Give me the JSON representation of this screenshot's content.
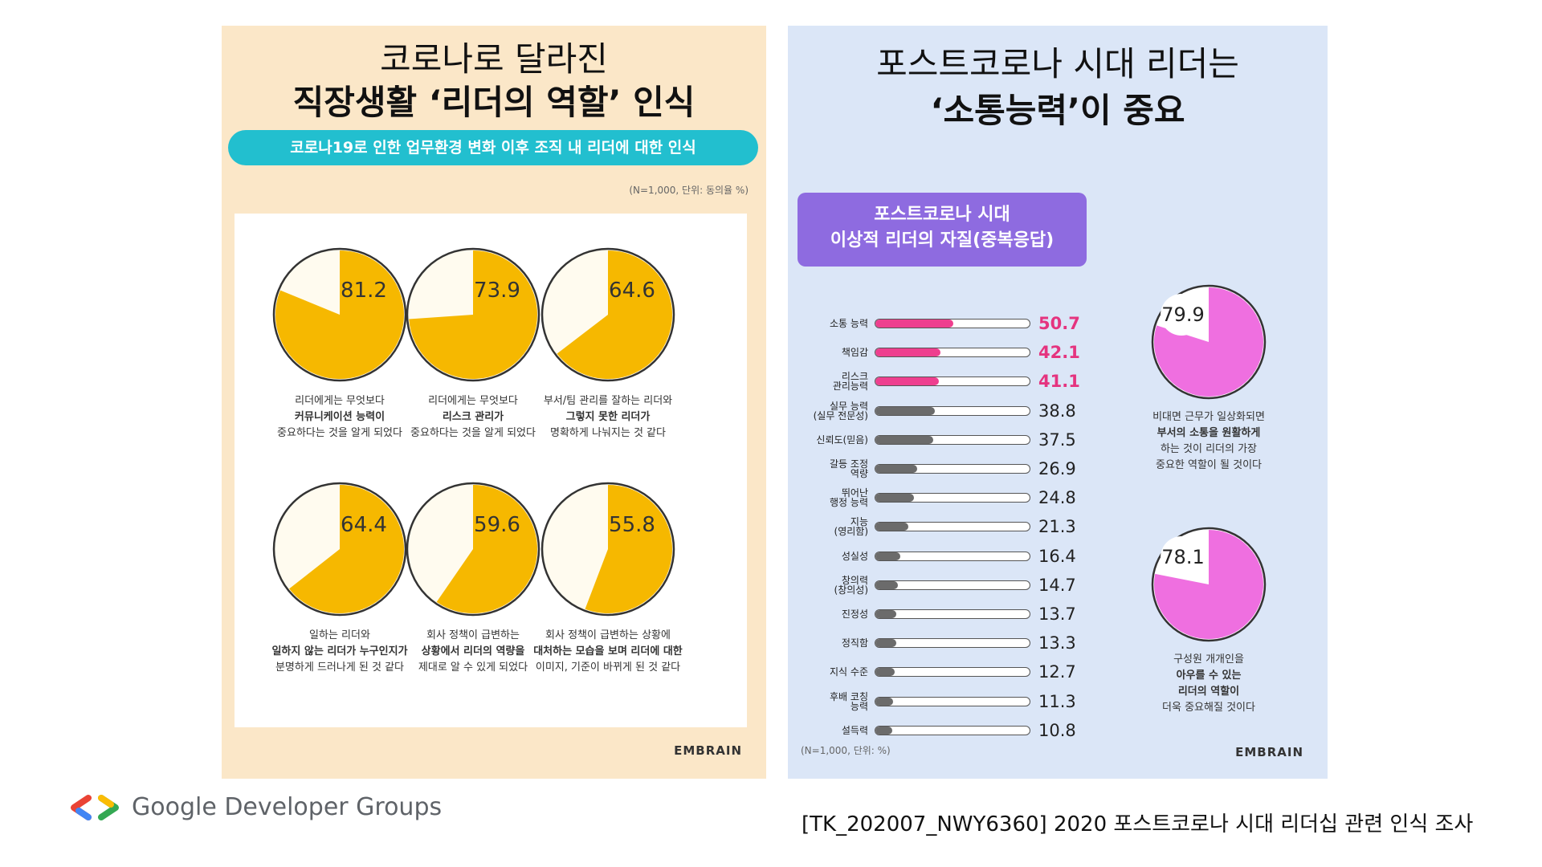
{
  "left": {
    "title_line1": "코로나로 달라진",
    "title_line2": "직장생활 ‘리더의 역할’ 인식",
    "pill": "코로나19로 인한 업무환경 변화 이후 조직 내 리더에 대한 인식",
    "note": "(N=1,000, 단위: 동의율 %)",
    "logo": "EMBRAIN",
    "items": [
      {
        "value": "81.2",
        "cap1": "리더에게는 무엇보다",
        "cap2": "커뮤니케이션 능력이",
        "cap3": "중요하다는 것을 알게 되었다"
      },
      {
        "value": "73.9",
        "cap1": "리더에게는 무엇보다",
        "cap2": "리스크 관리가",
        "cap3": "중요하다는 것을 알게 되었다"
      },
      {
        "value": "64.6",
        "cap1": "부서/팀 관리를 잘하는 리더와",
        "cap2": "그렇지 못한 리더가",
        "cap3": "명확하게 나눠지는 것 같다"
      },
      {
        "value": "64.4",
        "cap1": "일하는 리더와",
        "cap2": "일하지 않는 리더가 누구인지가",
        "cap3": "분명하게 드러나게 된 것 같다"
      },
      {
        "value": "59.6",
        "cap1": "회사 정책이 급변하는",
        "cap2": "상황에서 리더의 역량을",
        "cap3": "제대로 알 수 있게 되었다"
      },
      {
        "value": "55.8",
        "cap1": "회사 정책이 급변하는 상황에",
        "cap2": "대처하는 모습을 보며 리더에 대한",
        "cap3": "이미지, 기준이 바뀌게 된 것 같다"
      }
    ]
  },
  "right": {
    "title_line1": "포스트코로나 시대 리더는",
    "title_line2": "‘소통능력’이 중요",
    "box_line1": "포스트코로나 시대",
    "box_line2": "이상적 리더의 자질(중복응답)",
    "note": "(N=1,000, 단위: %)",
    "logo": "EMBRAIN",
    "ring1": {
      "value": "79.9",
      "cap1": "비대면 근무가 일상화되면",
      "cap2": "부서의 소통을 원활하게",
      "cap3": "하는 것이 리더의 가장",
      "cap4": "중요한 역할이 될 것이다"
    },
    "ring2": {
      "value": "78.1",
      "cap1": "구성원 개개인을",
      "cap2": "아우를 수 있는",
      "cap3": "리더의 역할이",
      "cap4": "더욱 중요해질 것이다"
    }
  },
  "chart_data": {
    "type": "bar",
    "title": "포스트코로나 시대 이상적 리더의 자질(중복응답)",
    "categories": [
      "소통 능력",
      "책임감",
      "리스크 관리능력",
      "실무 능력 (실무 전문성)",
      "신뢰도(믿음)",
      "갈등 조정 역량",
      "뛰어난 행정 능력",
      "지능 (영리함)",
      "성실성",
      "창의력 (창의성)",
      "진정성",
      "정직함",
      "지식 수준",
      "후배 코칭 능력",
      "설득력"
    ],
    "labels": [
      [
        "소통 능력"
      ],
      [
        "책임감"
      ],
      [
        "리스크",
        "관리능력"
      ],
      [
        "실무 능력",
        "(실무 전문성)"
      ],
      [
        "신뢰도(믿음)"
      ],
      [
        "갈등 조정",
        "역량"
      ],
      [
        "뛰어난",
        "행정 능력"
      ],
      [
        "지능",
        "(영리함)"
      ],
      [
        "성실성"
      ],
      [
        "창의력",
        "(창의성)"
      ],
      [
        "진정성"
      ],
      [
        "정직함"
      ],
      [
        "지식 수준"
      ],
      [
        "후배 코칭",
        "능력"
      ],
      [
        "설득력"
      ]
    ],
    "values": [
      50.7,
      42.1,
      41.1,
      38.8,
      37.5,
      26.9,
      24.8,
      21.3,
      16.4,
      14.7,
      13.7,
      13.3,
      12.7,
      11.3,
      10.8
    ],
    "value_labels": [
      "50.7",
      "42.1",
      "41.1",
      "38.8",
      "37.5",
      "26.9",
      "24.8",
      "21.3",
      "16.4",
      "14.7",
      "13.7",
      "13.3",
      "12.7",
      "11.3",
      "10.8"
    ],
    "highlight_count": 3,
    "xlim": [
      0,
      100
    ],
    "colors": {
      "highlight": "#ee3f8f",
      "normal": "#6b6b6b",
      "highlight_text": "#e5347f",
      "normal_text": "#222222"
    }
  },
  "footer": {
    "gdg": "Google Developer Groups",
    "source": "[TK_202007_NWY6360] 2020 포스트코로나 시대 리더십 관련 인식 조사"
  },
  "colors": {
    "left_bg": "#fbe7c8",
    "right_bg": "#dbe6f7",
    "pill": "#22bfcf",
    "box": "#8e6be0",
    "pie_yellow": "#f6b800",
    "pie_pink": "#ef6fe0"
  }
}
